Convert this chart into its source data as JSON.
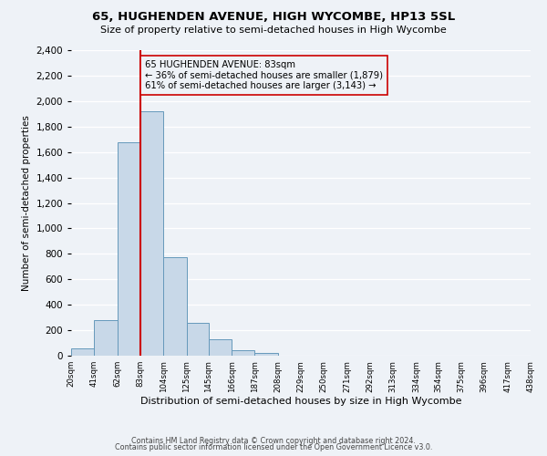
{
  "title": "65, HUGHENDEN AVENUE, HIGH WYCOMBE, HP13 5SL",
  "subtitle": "Size of property relative to semi-detached houses in High Wycombe",
  "xlabel": "Distribution of semi-detached houses by size in High Wycombe",
  "ylabel": "Number of semi-detached properties",
  "bin_edges": [
    20,
    41,
    62,
    83,
    104,
    125,
    145,
    166,
    187,
    208,
    229,
    250,
    271,
    292,
    313,
    334,
    354,
    375,
    396,
    417,
    438
  ],
  "bin_counts": [
    55,
    280,
    1680,
    1920,
    775,
    255,
    128,
    42,
    20,
    0,
    0,
    0,
    0,
    0,
    0,
    0,
    0,
    0,
    0,
    0
  ],
  "bar_color": "#c8d8e8",
  "bar_edge_color": "#6699bb",
  "property_size": 83,
  "vline_color": "#cc0000",
  "annotation_line1": "65 HUGHENDEN AVENUE: 83sqm",
  "annotation_line2": "← 36% of semi-detached houses are smaller (1,879)",
  "annotation_line3": "61% of semi-detached houses are larger (3,143) →",
  "annotation_box_edge": "#cc0000",
  "ylim": [
    0,
    2400
  ],
  "yticks": [
    0,
    200,
    400,
    600,
    800,
    1000,
    1200,
    1400,
    1600,
    1800,
    2000,
    2200,
    2400
  ],
  "tick_labels": [
    "20sqm",
    "41sqm",
    "62sqm",
    "83sqm",
    "104sqm",
    "125sqm",
    "145sqm",
    "166sqm",
    "187sqm",
    "208sqm",
    "229sqm",
    "250sqm",
    "271sqm",
    "292sqm",
    "313sqm",
    "334sqm",
    "354sqm",
    "375sqm",
    "396sqm",
    "417sqm",
    "438sqm"
  ],
  "footer1": "Contains HM Land Registry data © Crown copyright and database right 2024.",
  "footer2": "Contains public sector information licensed under the Open Government Licence v3.0.",
  "bg_color": "#eef2f7"
}
